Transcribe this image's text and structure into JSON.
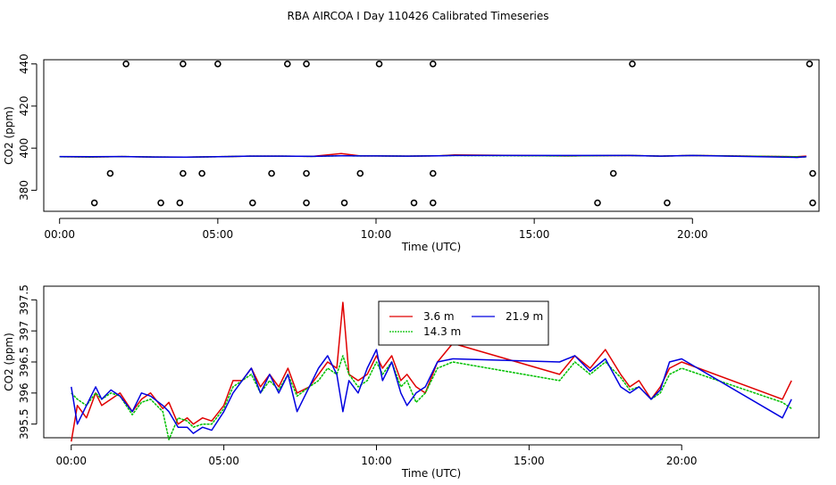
{
  "title": "RBA AIRCOA I  Day 110426  Calibrated Timeseries",
  "colors": {
    "s1": "#e00000",
    "s2": "#00c000",
    "s3": "#0000e0",
    "flags": "#000000"
  },
  "chart_data": [
    {
      "type": "line",
      "xlabel": "Time (UTC)",
      "ylabel": "CO2 (ppm)",
      "xlim": [
        -0.5,
        24.0
      ],
      "ylim": [
        370,
        442
      ],
      "xticks": [
        0,
        5,
        10,
        15,
        20
      ],
      "xtick_labels": [
        "00:00",
        "05:00",
        "10:00",
        "15:00",
        "20:00"
      ],
      "yticks": [
        380,
        400,
        420,
        440
      ],
      "ytick_labels": [
        "380",
        "400",
        "420",
        "440"
      ],
      "series": [
        {
          "name": "3.6 m",
          "x": [
            0.0,
            1.0,
            2.0,
            3.0,
            4.0,
            5.0,
            6.0,
            7.0,
            8.0,
            8.9,
            9.5,
            10.0,
            11.0,
            12.0,
            12.5,
            16.0,
            18.0,
            19.0,
            20.0,
            23.3,
            23.6
          ],
          "values": [
            395.9,
            395.8,
            396.0,
            395.8,
            395.7,
            395.9,
            396.2,
            396.2,
            396.1,
            397.4,
            396.3,
            396.3,
            396.2,
            396.4,
            396.8,
            396.3,
            396.5,
            396.2,
            396.5,
            395.9,
            396.2
          ]
        },
        {
          "name": "14.3 m",
          "x": [
            0.0,
            1.0,
            2.0,
            3.0,
            4.0,
            5.0,
            6.0,
            7.0,
            8.0,
            8.9,
            9.5,
            10.0,
            11.0,
            12.0,
            12.5,
            16.0,
            18.0,
            19.0,
            20.0,
            23.3,
            23.6
          ],
          "values": [
            395.9,
            395.8,
            396.0,
            395.8,
            395.7,
            395.9,
            396.2,
            396.2,
            396.1,
            396.4,
            396.3,
            396.3,
            396.2,
            396.4,
            396.5,
            396.3,
            396.5,
            396.2,
            396.5,
            395.9,
            395.8
          ]
        },
        {
          "name": "21.9 m",
          "x": [
            0.0,
            1.0,
            2.0,
            3.0,
            4.0,
            5.0,
            6.0,
            7.0,
            8.0,
            8.9,
            9.5,
            10.0,
            11.0,
            12.0,
            12.5,
            16.0,
            18.0,
            19.0,
            20.0,
            23.3,
            23.6
          ],
          "values": [
            396.0,
            395.9,
            396.0,
            395.8,
            395.7,
            395.9,
            396.2,
            396.2,
            396.1,
            396.4,
            396.3,
            396.3,
            396.2,
            396.4,
            396.5,
            396.5,
            396.5,
            396.2,
            396.5,
            395.6,
            395.9
          ]
        }
      ],
      "flags": {
        "y": [
          440,
          388,
          374
        ],
        "x_at_440": [
          2.1,
          3.9,
          5.0,
          7.2,
          7.8,
          10.1,
          11.8,
          18.1,
          23.7
        ],
        "x_at_388": [
          1.6,
          3.9,
          4.5,
          6.7,
          7.8,
          9.5,
          11.8,
          17.5,
          23.8
        ],
        "x_at_374": [
          1.1,
          3.2,
          3.8,
          6.1,
          7.8,
          9.0,
          11.2,
          11.8,
          17.0,
          19.2,
          23.8
        ]
      }
    },
    {
      "type": "line",
      "xlabel": "Time (UTC)",
      "ylabel": "CO2 (ppm)",
      "xlim": [
        -0.9,
        24.5
      ],
      "ylim": [
        395.28,
        397.72
      ],
      "xticks": [
        0,
        5,
        10,
        15,
        20
      ],
      "xtick_labels": [
        "00:00",
        "05:00",
        "10:00",
        "15:00",
        "20:00"
      ],
      "yticks": [
        395.5,
        396.0,
        396.5,
        397.0,
        397.5
      ],
      "ytick_labels": [
        "395.5",
        "396",
        "396.5",
        "397",
        "397.5"
      ],
      "legend": {
        "position": "top-center",
        "entries": [
          "3.6 m",
          "14.3 m",
          "21.9 m"
        ]
      },
      "series": [
        {
          "name": "3.6 m",
          "x": [
            0.0,
            0.2,
            0.5,
            0.8,
            1.0,
            1.3,
            1.6,
            2.0,
            2.3,
            2.6,
            3.0,
            3.2,
            3.5,
            3.8,
            4.0,
            4.3,
            4.6,
            5.0,
            5.3,
            5.6,
            5.9,
            6.2,
            6.5,
            6.8,
            7.1,
            7.4,
            7.8,
            8.1,
            8.4,
            8.7,
            8.9,
            9.1,
            9.4,
            9.7,
            10.0,
            10.2,
            10.5,
            10.8,
            11.0,
            11.3,
            11.6,
            12.0,
            12.5,
            16.0,
            16.5,
            17.0,
            17.5,
            18.0,
            18.3,
            18.6,
            19.0,
            19.3,
            19.6,
            20.0,
            23.3,
            23.6
          ],
          "values": [
            395.22,
            395.8,
            395.6,
            396.0,
            395.8,
            395.9,
            396.0,
            395.7,
            395.9,
            396.0,
            395.75,
            395.85,
            395.5,
            395.6,
            395.5,
            395.6,
            395.55,
            395.8,
            396.2,
            396.2,
            396.4,
            396.1,
            396.3,
            396.1,
            396.4,
            396.0,
            396.1,
            396.3,
            396.5,
            396.4,
            397.46,
            396.3,
            396.2,
            396.3,
            396.6,
            396.4,
            396.6,
            396.2,
            396.3,
            396.1,
            396.0,
            396.5,
            396.8,
            396.3,
            396.6,
            396.4,
            396.7,
            396.3,
            396.1,
            396.2,
            395.9,
            396.1,
            396.4,
            396.5,
            395.9,
            396.2
          ]
        },
        {
          "name": "14.3 m",
          "x": [
            0.0,
            0.2,
            0.5,
            0.8,
            1.0,
            1.3,
            1.6,
            2.0,
            2.3,
            2.6,
            3.0,
            3.2,
            3.5,
            3.8,
            4.0,
            4.3,
            4.6,
            5.0,
            5.3,
            5.6,
            5.9,
            6.2,
            6.5,
            6.8,
            7.1,
            7.4,
            7.8,
            8.1,
            8.4,
            8.7,
            8.9,
            9.1,
            9.4,
            9.7,
            10.0,
            10.2,
            10.5,
            10.8,
            11.0,
            11.3,
            11.6,
            12.0,
            12.5,
            16.0,
            16.5,
            17.0,
            17.5,
            18.0,
            18.3,
            18.6,
            19.0,
            19.3,
            19.6,
            20.0,
            23.3,
            23.6
          ],
          "values": [
            396.0,
            395.9,
            395.8,
            396.0,
            395.9,
            396.0,
            395.95,
            395.65,
            395.85,
            395.9,
            395.7,
            395.25,
            395.6,
            395.55,
            395.45,
            395.5,
            395.5,
            395.75,
            396.1,
            396.2,
            396.3,
            396.0,
            396.2,
            396.05,
            396.3,
            395.95,
            396.1,
            396.2,
            396.4,
            396.3,
            396.6,
            396.3,
            396.1,
            396.2,
            396.5,
            396.3,
            396.5,
            396.1,
            396.2,
            395.85,
            396.0,
            396.4,
            396.5,
            396.2,
            396.5,
            396.3,
            396.5,
            396.25,
            396.05,
            396.1,
            395.9,
            396.0,
            396.3,
            396.4,
            395.85,
            395.75
          ]
        },
        {
          "name": "21.9 m",
          "x": [
            0.0,
            0.2,
            0.5,
            0.8,
            1.0,
            1.3,
            1.6,
            2.0,
            2.3,
            2.6,
            3.0,
            3.2,
            3.5,
            3.8,
            4.0,
            4.3,
            4.6,
            5.0,
            5.3,
            5.6,
            5.9,
            6.2,
            6.5,
            6.8,
            7.1,
            7.4,
            7.8,
            8.1,
            8.4,
            8.7,
            8.9,
            9.1,
            9.4,
            9.7,
            10.0,
            10.2,
            10.5,
            10.8,
            11.0,
            11.3,
            11.6,
            12.0,
            12.5,
            16.0,
            16.5,
            17.0,
            17.5,
            18.0,
            18.3,
            18.6,
            19.0,
            19.3,
            19.6,
            20.0,
            23.3,
            23.6
          ],
          "values": [
            396.1,
            395.5,
            395.8,
            396.1,
            395.9,
            396.05,
            395.95,
            395.7,
            396.0,
            395.95,
            395.8,
            395.7,
            395.45,
            395.45,
            395.35,
            395.45,
            395.4,
            395.7,
            396.0,
            396.2,
            396.4,
            396.0,
            396.3,
            396.0,
            396.3,
            395.7,
            396.1,
            396.4,
            396.6,
            396.3,
            395.7,
            396.2,
            396.0,
            396.4,
            396.7,
            396.2,
            396.5,
            396.0,
            395.8,
            396.0,
            396.1,
            396.5,
            396.55,
            396.5,
            396.6,
            396.35,
            396.55,
            396.1,
            396.0,
            396.1,
            395.9,
            396.05,
            396.5,
            396.55,
            395.6,
            395.9
          ]
        }
      ]
    }
  ]
}
